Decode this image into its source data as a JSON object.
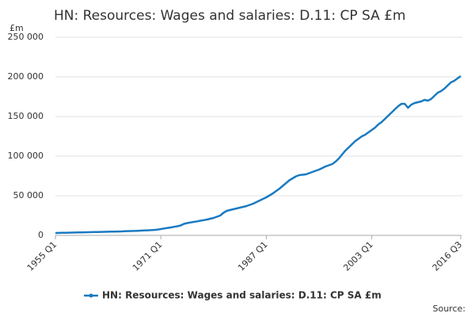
{
  "chart_data": {
    "type": "line",
    "title": "HN: Resources: Wages and salaries: D.11: CP SA £m",
    "y_unit": "£m",
    "source": "Source:",
    "categories": [
      "1955 Q1",
      null,
      null,
      null,
      null,
      null,
      null,
      null,
      null,
      null,
      null,
      null,
      null,
      null,
      null,
      null,
      null,
      null,
      null,
      null,
      null,
      null,
      null,
      null,
      null,
      null,
      null,
      null,
      null,
      null,
      null,
      null,
      "1971 Q1",
      null,
      null,
      null,
      null,
      null,
      null,
      null,
      null,
      null,
      null,
      null,
      null,
      null,
      null,
      null,
      null,
      null,
      null,
      null,
      null,
      null,
      null,
      null,
      null,
      null,
      null,
      null,
      null,
      null,
      null,
      null,
      "1987 Q1",
      null,
      null,
      null,
      null,
      null,
      null,
      null,
      null,
      null,
      null,
      null,
      null,
      null,
      null,
      null,
      null,
      null,
      null,
      null,
      null,
      null,
      null,
      null,
      null,
      null,
      null,
      null,
      null,
      null,
      null,
      null,
      "2003 Q1",
      null,
      null,
      null,
      null,
      null,
      null,
      null,
      null,
      null,
      null,
      null,
      null,
      null,
      null,
      null,
      null,
      null,
      null,
      null,
      null,
      null,
      null,
      null,
      null,
      null,
      null,
      "2016 Q3"
    ],
    "series": [
      {
        "name": "HN: Resources: Wages and salaries: D.11: CP SA £m",
        "color": "#1a7ac0",
        "values": [
          3000,
          3100,
          3200,
          3300,
          3400,
          3500,
          3600,
          3700,
          3800,
          3900,
          4000,
          4100,
          4200,
          4300,
          4400,
          4500,
          4600,
          4700,
          4800,
          4900,
          5000,
          5200,
          5400,
          5500,
          5600,
          5800,
          6000,
          6200,
          6400,
          6600,
          6900,
          7300,
          8000,
          8700,
          9400,
          10000,
          10800,
          11500,
          12500,
          14500,
          15500,
          16300,
          17000,
          17700,
          18500,
          19200,
          20000,
          21000,
          22000,
          23500,
          25000,
          28500,
          31000,
          32000,
          33000,
          34000,
          35000,
          36000,
          37000,
          38500,
          40000,
          42000,
          44000,
          46000,
          48000,
          50500,
          53000,
          56000,
          59000,
          62500,
          66000,
          69500,
          72000,
          74500,
          76000,
          76500,
          77000,
          78500,
          80000,
          81500,
          83000,
          85000,
          87000,
          88500,
          90000,
          93000,
          97000,
          102000,
          107000,
          111000,
          115000,
          119000,
          122000,
          125000,
          127000,
          130000,
          133000,
          136000,
          140000,
          143000,
          147000,
          151000,
          155000,
          159000,
          163000,
          166000,
          166000,
          161000,
          165000,
          167000,
          168000,
          169000,
          171000,
          170000,
          172000,
          176000,
          180000,
          182000,
          185000,
          189000,
          193000,
          195000,
          198000,
          201000
        ]
      }
    ],
    "ylim": [
      0,
      250000
    ],
    "yticks": [
      0,
      {
        "value": 50000,
        "label": "50 000"
      },
      {
        "value": 100000,
        "label": "100 000"
      },
      {
        "value": 150000,
        "label": "150 000"
      },
      {
        "value": 200000,
        "label": "200 000"
      },
      {
        "value": 250000,
        "label": "250 000"
      }
    ],
    "grid": true
  }
}
